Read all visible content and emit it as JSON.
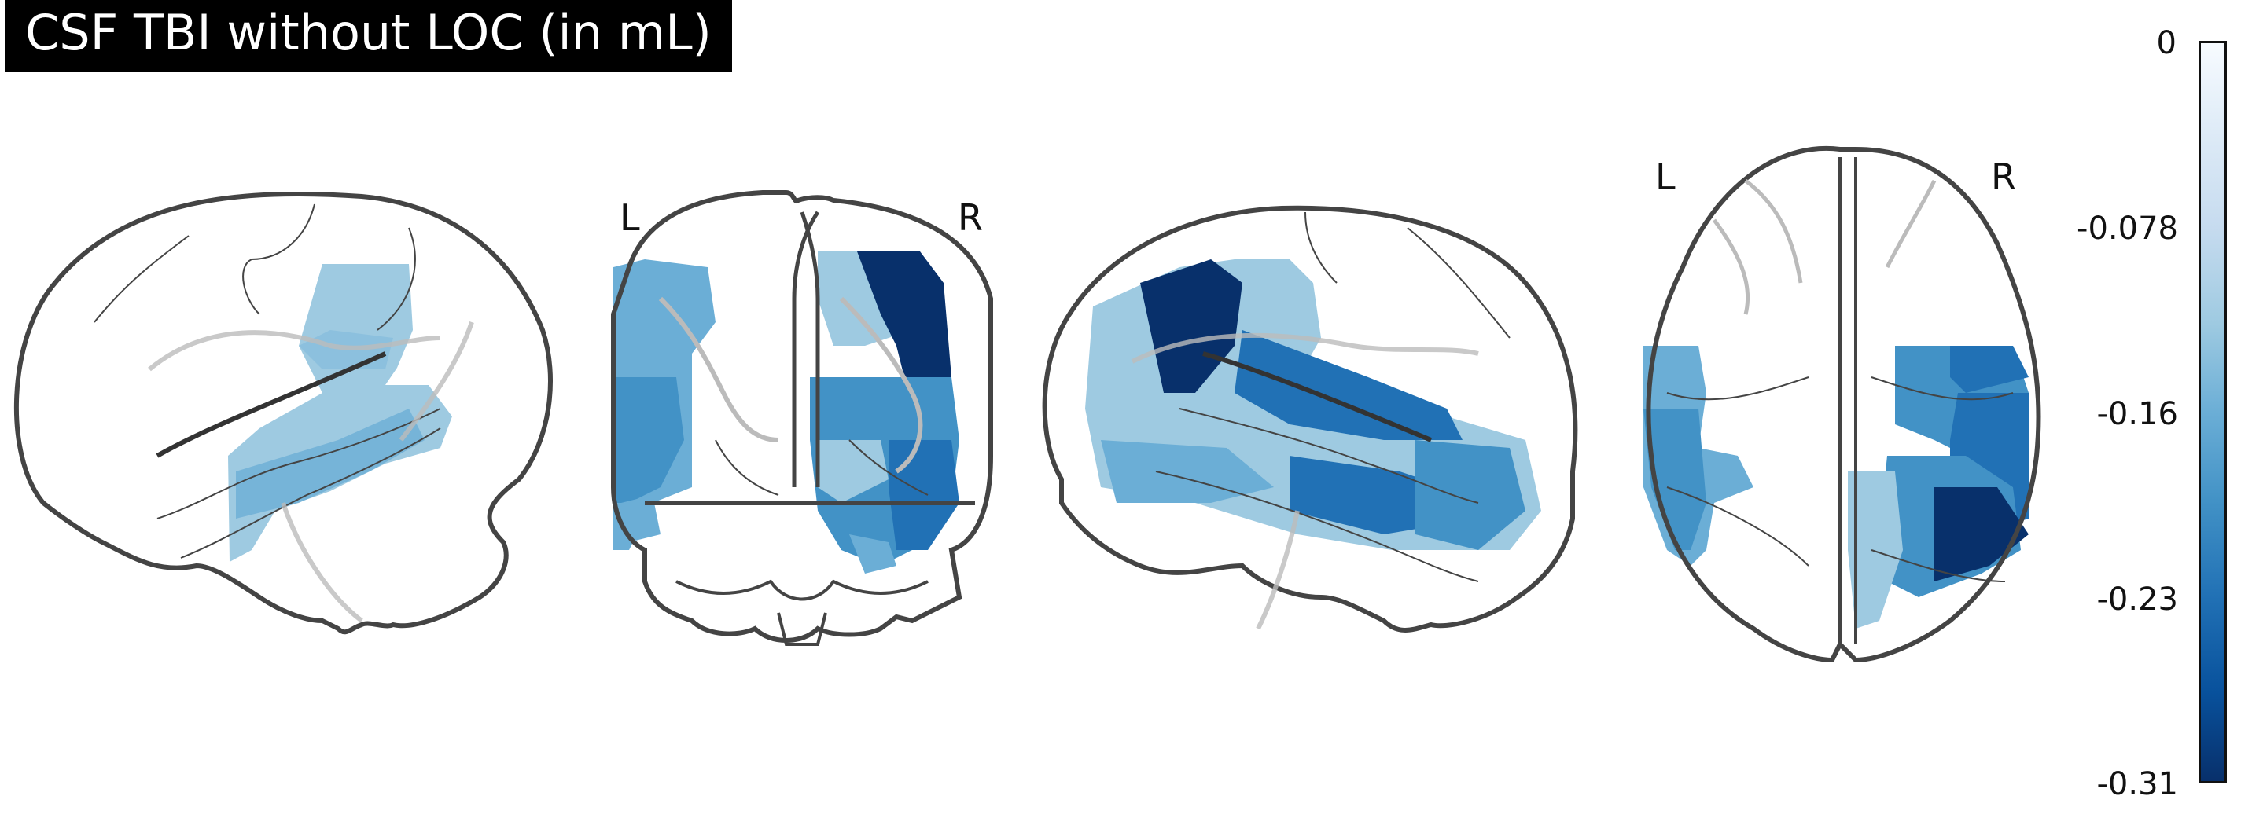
{
  "figure": {
    "title": "CSF TBI without LOC (in mL)",
    "views": {
      "sagittal_left": {},
      "coronal": {
        "left_label": "L",
        "right_label": "R"
      },
      "sagittal_right": {},
      "axial": {
        "left_label": "L",
        "right_label": "R"
      }
    },
    "colorbar": {
      "colormap": "Blues (reversed: 0 = white, -0.31 = dark blue)",
      "min": -0.31,
      "max": 0,
      "tick_labels": [
        "0",
        "-0.078",
        "-0.16",
        "-0.23",
        "-0.31"
      ]
    }
  }
}
